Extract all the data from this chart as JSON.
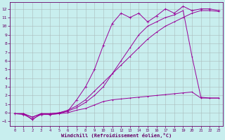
{
  "xlabel": "Windchill (Refroidissement éolien,°C)",
  "xlim": [
    -0.5,
    23.5
  ],
  "ylim": [
    -1.5,
    12.8
  ],
  "yticks": [
    -1,
    0,
    1,
    2,
    3,
    4,
    5,
    6,
    7,
    8,
    9,
    10,
    11,
    12
  ],
  "xticks": [
    0,
    1,
    2,
    3,
    4,
    5,
    6,
    7,
    8,
    9,
    10,
    11,
    12,
    13,
    14,
    15,
    16,
    17,
    18,
    19,
    20,
    21,
    22,
    23
  ],
  "bg_color": "#c8eeee",
  "line_color": "#990099",
  "line1_x": [
    0,
    1,
    2,
    3,
    4,
    5,
    6,
    7,
    8,
    9,
    10,
    11,
    12,
    13,
    14,
    15,
    16,
    17,
    18,
    19,
    20,
    21,
    22,
    23
  ],
  "line1_y": [
    -0.1,
    -0.1,
    -0.8,
    -0.1,
    -0.2,
    -0.1,
    0.0,
    0.3,
    0.5,
    0.9,
    1.3,
    1.5,
    1.6,
    1.7,
    1.8,
    1.9,
    2.0,
    2.1,
    2.2,
    2.3,
    2.4,
    1.7,
    1.7,
    1.7
  ],
  "line2_x": [
    0,
    1,
    2,
    3,
    4,
    5,
    6,
    7,
    8,
    9,
    10,
    11,
    12,
    13,
    14,
    15,
    16,
    17,
    18,
    19,
    20,
    21,
    22,
    23
  ],
  "line2_y": [
    -0.1,
    -0.1,
    -0.5,
    -0.1,
    -0.1,
    0.0,
    0.3,
    0.8,
    1.5,
    2.5,
    3.5,
    4.5,
    5.5,
    6.5,
    7.5,
    8.5,
    9.3,
    10.0,
    10.5,
    11.0,
    11.5,
    11.8,
    11.8,
    11.7
  ],
  "line3_x": [
    0,
    1,
    2,
    3,
    4,
    5,
    6,
    7,
    8,
    9,
    10,
    11,
    12,
    13,
    14,
    15,
    16,
    17,
    18,
    19,
    20,
    21,
    22,
    23
  ],
  "line3_y": [
    -0.1,
    -0.2,
    -0.7,
    -0.2,
    -0.2,
    -0.1,
    0.2,
    1.5,
    3.0,
    5.0,
    7.8,
    10.3,
    11.5,
    11.0,
    11.5,
    10.5,
    11.2,
    12.0,
    11.5,
    12.3,
    11.8,
    12.0,
    12.0,
    11.8
  ],
  "line4_x": [
    0,
    1,
    2,
    3,
    4,
    5,
    6,
    7,
    8,
    9,
    10,
    11,
    12,
    13,
    14,
    15,
    16,
    17,
    18,
    19,
    20,
    21,
    22,
    23
  ],
  "line4_y": [
    -0.1,
    -0.1,
    -0.5,
    -0.1,
    -0.1,
    0.0,
    0.2,
    0.6,
    1.2,
    2.0,
    3.0,
    4.5,
    6.0,
    7.5,
    9.0,
    10.0,
    10.5,
    11.0,
    11.3,
    11.8,
    6.5,
    1.8,
    1.7,
    1.7
  ]
}
